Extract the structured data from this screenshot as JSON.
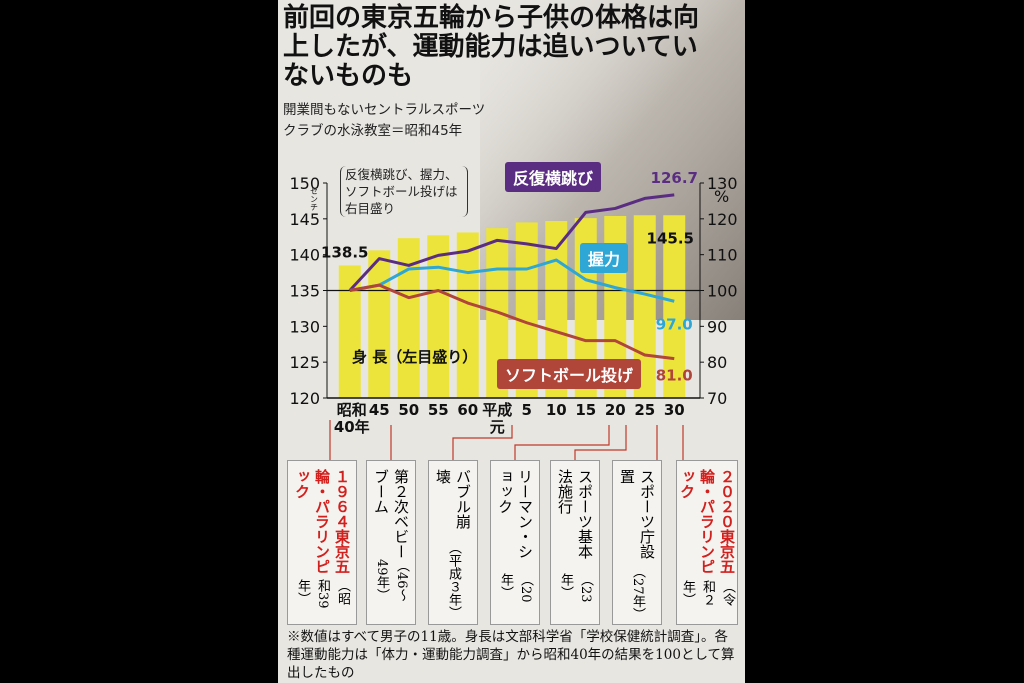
{
  "title": "前回の東京五輪から子供の体格は向上したが、運動能力は追いついていないものも",
  "photo_caption": "開業間もないセントラルスポーツクラブの水泳教室＝昭和45年",
  "chart_data": {
    "type": "combo",
    "note": "反復横跳び、握力、ソフトボール投げは右目盛り",
    "categories": [
      "昭和\n40年",
      "45",
      "50",
      "55",
      "60",
      "平成\n元",
      "5",
      "10",
      "15",
      "20",
      "25",
      "30"
    ],
    "ylim": [
      120,
      150
    ],
    "yticks": [
      120,
      125,
      130,
      135,
      140,
      145,
      150
    ],
    "y_unit": "センチ",
    "y2lim": [
      70,
      130
    ],
    "y2ticks": [
      70,
      80,
      90,
      100,
      110,
      120,
      130
    ],
    "y2_unit": "%",
    "y2_reference": 100,
    "series": [
      {
        "name": "身 長（左目盛り）",
        "type": "bar",
        "color": "#ece43a",
        "values": [
          138.5,
          140.6,
          142.3,
          142.7,
          143.1,
          143.7,
          144.5,
          144.7,
          145.1,
          145.4,
          145.5,
          145.5
        ],
        "value_labels": [
          "138.5",
          null,
          null,
          null,
          null,
          null,
          null,
          null,
          null,
          null,
          null,
          "145.5"
        ]
      },
      {
        "name": "反復横跳び",
        "type": "line",
        "axis": "y2",
        "color": "#5a2d83",
        "values": [
          100,
          108.9,
          107,
          109.8,
          111,
          114,
          113,
          111.7,
          121.8,
          122.9,
          125.7,
          126.7
        ],
        "value_labels": [
          null,
          null,
          null,
          null,
          null,
          null,
          null,
          null,
          null,
          null,
          null,
          "126.7"
        ]
      },
      {
        "name": "握力",
        "type": "line",
        "axis": "y2",
        "color": "#2ea6d6",
        "values": [
          100,
          101.5,
          106,
          106.5,
          105,
          106,
          106,
          108.5,
          103,
          100.8,
          99,
          97
        ],
        "value_labels": [
          null,
          null,
          null,
          null,
          null,
          null,
          null,
          null,
          null,
          null,
          null,
          "97.0"
        ]
      },
      {
        "name": "ソフトボール投げ",
        "type": "line",
        "axis": "y2",
        "color": "#b0453a",
        "values": [
          100,
          101.5,
          98,
          100,
          96.5,
          94,
          91,
          88.5,
          86,
          86,
          82,
          81
        ],
        "value_labels": [
          null,
          null,
          null,
          null,
          null,
          null,
          null,
          null,
          null,
          null,
          null,
          "81.0"
        ]
      }
    ]
  },
  "events": [
    {
      "label": "１９６４東京五輪・パラリンピック",
      "date": "（昭和39年）"
    },
    {
      "label": "第２次ベビーブーム",
      "date": "（46～49年）"
    },
    {
      "label": "バブル崩壊",
      "date": "（平成３年）"
    },
    {
      "label": "リーマン・ショック",
      "date": "（20年）"
    },
    {
      "label": "スポーツ基本法施行",
      "date": "（23年）"
    },
    {
      "label": "スポーツ庁設置",
      "date": "（27年）"
    },
    {
      "label": "２０２０東京五輪・パラリンピック",
      "date": "（令和２年）"
    }
  ],
  "footnote": "※数値はすべて男子の11歳。身長は文部科学省「学校保健統計調査」。各種運動能力は「体力・運動能力調査」から昭和40年の結果を100として算出したもの"
}
